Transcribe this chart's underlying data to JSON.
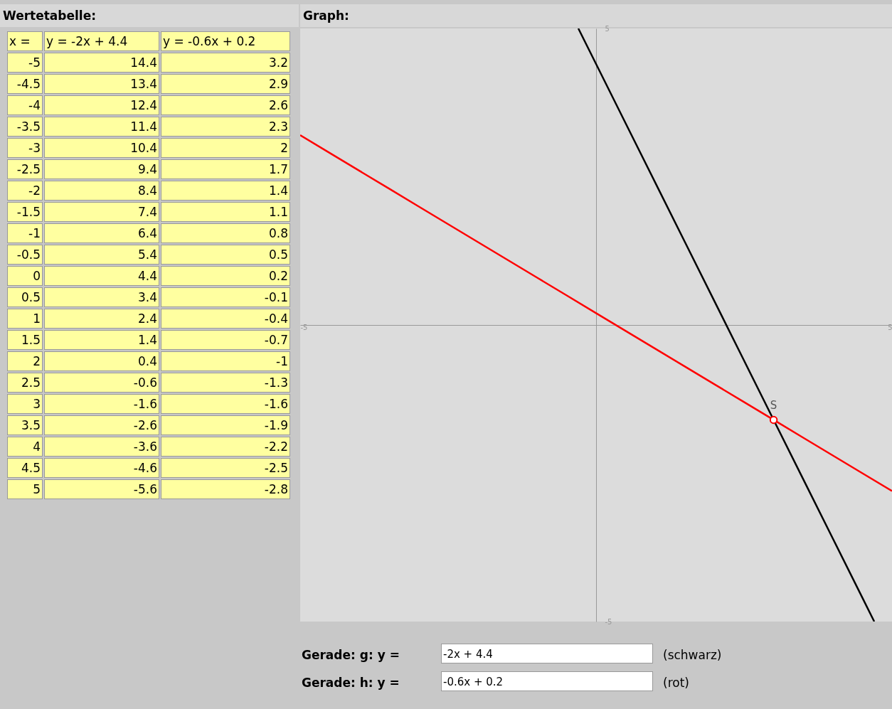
{
  "chart_data": {
    "type": "line",
    "xlim": [
      -5,
      5
    ],
    "ylim": [
      -5,
      5
    ],
    "xticks": [
      -5,
      5
    ],
    "yticks": [
      -5,
      5
    ],
    "series": [
      {
        "color": "#000000",
        "x": [
          -0.3,
          0,
          0.5,
          1,
          1.5,
          2,
          2.5,
          3,
          3.5,
          4,
          4.5,
          4.7
        ],
        "values": [
          5,
          4.4,
          3.4,
          2.4,
          1.4,
          0.4,
          -0.6,
          -1.6,
          -2.6,
          -3.6,
          -4.6,
          -5
        ]
      },
      {
        "color": "#ff0000",
        "x": [
          -5,
          -4.5,
          -4,
          -3.5,
          -3,
          -2.5,
          -2,
          -1.5,
          -1,
          -0.5,
          0,
          0.5,
          1,
          1.5,
          2,
          2.5,
          3,
          3.5,
          4,
          4.5,
          5
        ],
        "values": [
          3.2,
          2.9,
          2.6,
          2.3,
          2,
          1.7,
          1.4,
          1.1,
          0.8,
          0.5,
          0.2,
          -0.1,
          -0.4,
          -0.7,
          -1,
          -1.3,
          -1.6,
          -1.9,
          -2.2,
          -2.5,
          -2.8
        ]
      },
      {
        "type": "scatter",
        "color": "#ff0000",
        "x": [
          3
        ],
        "values": [
          -1.6
        ]
      }
    ],
    "annotations": [
      "Wertetabelle:",
      "Graph:",
      "Gerade: g: y =",
      "-2x + 4.4",
      "(schwarz)",
      "Gerade: h: y =",
      "-0.6x + 0.2",
      "(rot)",
      {
        "text": "S",
        "x": 3,
        "y": -1.6
      },
      "x =",
      "y = -2x + 4.4",
      "y = -0.6x + 0.2",
      "-5",
      "14.4",
      "3.2",
      "-4.5",
      "13.4",
      "2.9",
      "-4",
      "12.4",
      "2.6",
      "-3.5",
      "11.4",
      "2.3",
      "-3",
      "10.4",
      "2",
      "-2.5",
      "9.4",
      "1.7",
      "-2",
      "8.4",
      "1.4",
      "-1.5",
      "7.4",
      "1.1",
      "-1",
      "6.4",
      "0.8",
      "-0.5",
      "5.4",
      "0.5",
      "0",
      "4.4",
      "0.2",
      "0.5",
      "3.4",
      "-0.1",
      "1",
      "2.4",
      "-0.4",
      "1.5",
      "1.4",
      "-0.7",
      "2",
      "0.4",
      "-1",
      "2.5",
      "-0.6",
      "-1.3",
      "3",
      "-1.6",
      "-1.6",
      "3.5",
      "-2.6",
      "-1.9",
      "4",
      "-3.6",
      "-2.2",
      "4.5",
      "-4.6",
      "-2.5",
      "5",
      "-5.6",
      "-2.8"
    ]
  }
}
